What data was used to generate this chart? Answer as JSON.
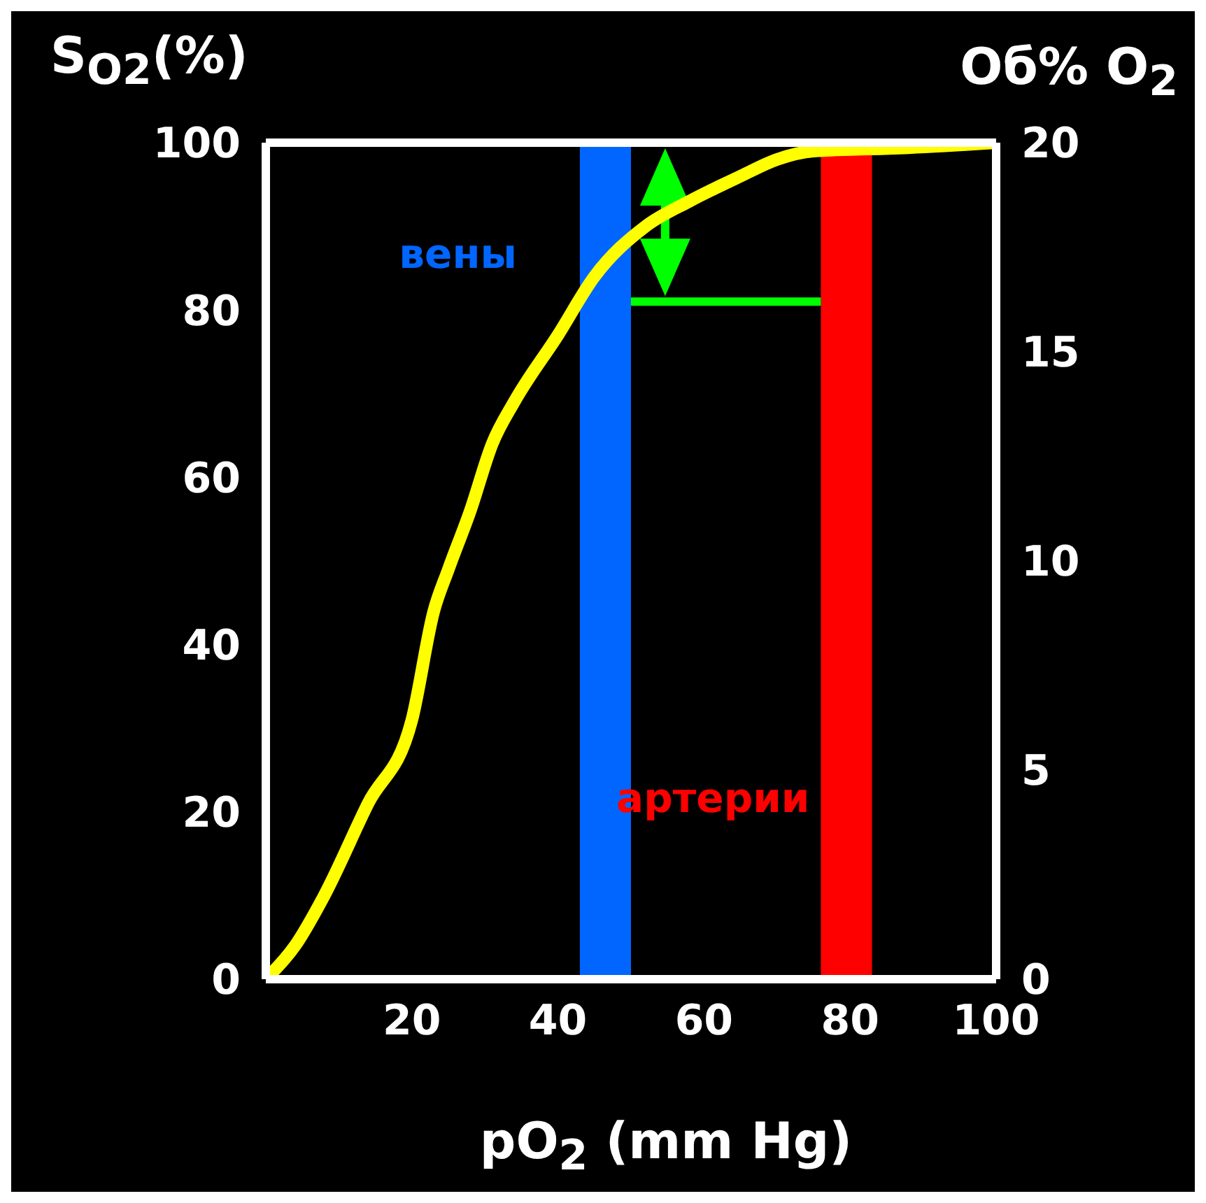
{
  "chart_data": {
    "type": "line",
    "xlabel": "pO$_{2}$ (mm Hg)",
    "ylabel": "S$_{O2}$(%)",
    "y2label": "Об% O$_{2}$",
    "x": [
      0,
      4,
      8,
      14,
      20,
      23,
      25,
      28,
      31,
      34,
      40,
      45,
      52,
      58,
      65,
      70,
      75,
      88,
      100
    ],
    "series": [
      {
        "color": "#ffff00",
        "values": [
          0,
          4,
          10,
          21,
          31,
          44,
          49,
          56,
          64,
          69,
          77,
          84,
          90,
          93,
          96,
          98,
          99,
          99.4,
          100
        ]
      }
    ],
    "xlim": [
      0,
      100
    ],
    "xticks": [
      20,
      40,
      60,
      80,
      100
    ],
    "ylim": [
      0,
      100
    ],
    "yticks": [
      0,
      20,
      40,
      60,
      80,
      100
    ],
    "y2lim": [
      0,
      20
    ],
    "y2ticks": [
      0,
      5,
      10,
      15,
      20
    ],
    "bands": [
      {
        "axis": "x",
        "from": 43,
        "to": 50,
        "color": "#0066ff",
        "label": "вены"
      },
      {
        "axis": "x",
        "from": 76,
        "to": 83,
        "color": "#ff0000",
        "label": "артерии"
      }
    ],
    "marker": "none",
    "line_style": "solid"
  }
}
